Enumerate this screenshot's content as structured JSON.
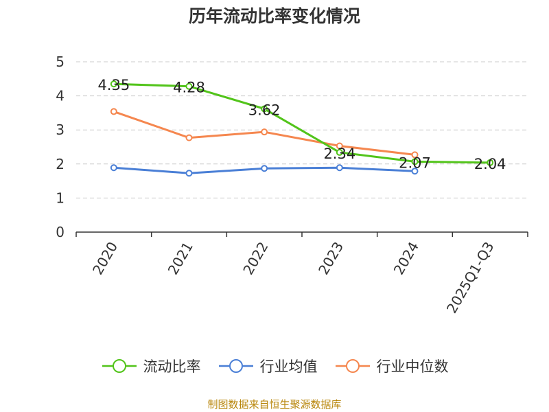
{
  "chart_data": {
    "type": "line",
    "title": "历年流动比率变化情况",
    "categories": [
      "2020",
      "2021",
      "2022",
      "2023",
      "2024",
      "2025Q1-Q3"
    ],
    "ylim": [
      0,
      5
    ],
    "yticks": [
      "0",
      "1",
      "2",
      "3",
      "4",
      "5"
    ],
    "grid": true,
    "legend_position": "bottom",
    "series": [
      {
        "name": "流动比率",
        "color": "#52c41a",
        "values": [
          4.35,
          4.28,
          3.62,
          2.34,
          2.07,
          2.04
        ],
        "labels": [
          "4.35",
          "4.28",
          "3.62",
          "2.34",
          "2.07",
          "2.04"
        ]
      },
      {
        "name": "行业均值",
        "color": "#4a7fd6",
        "values": [
          1.89,
          1.73,
          1.87,
          1.89,
          1.79,
          null
        ]
      },
      {
        "name": "行业中位数",
        "color": "#f5874f",
        "values": [
          3.54,
          2.77,
          2.94,
          2.53,
          2.27,
          null
        ]
      }
    ]
  },
  "footer": {
    "source": "制图数据来自恒生聚源数据库"
  }
}
